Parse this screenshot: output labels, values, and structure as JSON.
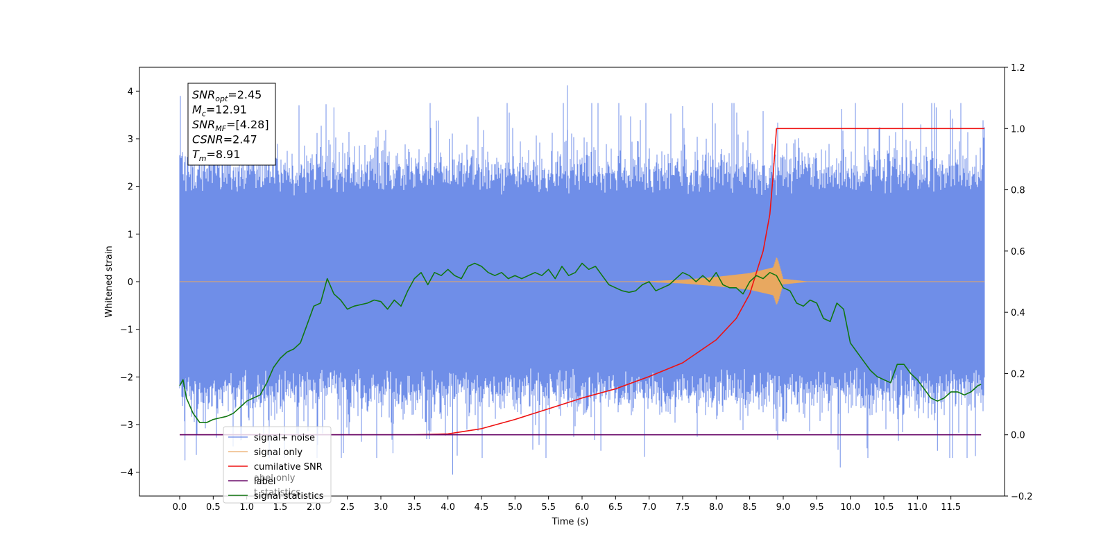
{
  "chart_data": {
    "type": "line",
    "title": "",
    "xlabel": "Time (s)",
    "ylabel": "Whitened strain",
    "y2label": "",
    "xlim": [
      -0.6,
      12.3
    ],
    "ylim": [
      -4.5,
      4.5
    ],
    "y2lim": [
      -0.2,
      1.2
    ],
    "xticks": [
      "0.0",
      "0.5",
      "1.0",
      "1.5",
      "2.0",
      "2.5",
      "3.0",
      "3.5",
      "4.0",
      "4.5",
      "5.0",
      "5.5",
      "6.0",
      "6.5",
      "7.0",
      "7.5",
      "8.0",
      "8.5",
      "9.0",
      "9.5",
      "10.0",
      "10.5",
      "11.0",
      "11.5"
    ],
    "yticks": [
      "−4",
      "−3",
      "−2",
      "−1",
      "0",
      "1",
      "2",
      "3",
      "4"
    ],
    "y2ticks": [
      "−0.2",
      "0.0",
      "0.2",
      "0.4",
      "0.6",
      "0.8",
      "1.0",
      "1.2"
    ],
    "grid": false,
    "legend_position": "lower-left",
    "colors": {
      "signal_noise": "#6f8ee8",
      "signal_only": "#e8a860",
      "cumulative_snr": "#ee1111",
      "label": "#6a0a6a",
      "signal_statistics": "#117711"
    },
    "series": [
      {
        "name": "signal+ noise",
        "axis": "left",
        "description_x_range": [
          0.0,
          12.0
        ],
        "typical_range": [
          -2.3,
          2.3
        ],
        "peak_max": 4.12,
        "peak_min": -4.05
      },
      {
        "name": "signal only",
        "axis": "left",
        "x": [
          0.0,
          7.0,
          7.5,
          8.0,
          8.5,
          8.85,
          8.9,
          8.93,
          9.0,
          9.4,
          12.0
        ],
        "envelope": [
          0.0,
          0.01,
          0.04,
          0.1,
          0.18,
          0.3,
          0.52,
          0.42,
          0.06,
          0.0,
          0.0
        ]
      },
      {
        "name": "cumilative SNR",
        "axis": "right",
        "x": [
          0.0,
          3.5,
          4.0,
          4.5,
          5.0,
          5.5,
          6.0,
          6.5,
          7.0,
          7.5,
          8.0,
          8.3,
          8.5,
          8.7,
          8.8,
          8.85,
          8.9,
          8.92,
          9.0,
          12.0
        ],
        "y": [
          0.0,
          0.0,
          0.003,
          0.02,
          0.05,
          0.085,
          0.12,
          0.15,
          0.19,
          0.235,
          0.31,
          0.38,
          0.46,
          0.6,
          0.72,
          0.85,
          1.0,
          1.0,
          1.0,
          1.0
        ]
      },
      {
        "name": "label",
        "axis": "right",
        "x": [
          0.0,
          11.95
        ],
        "y": [
          0.0,
          0.0
        ]
      },
      {
        "name": "signal statistics",
        "axis": "right",
        "x": [
          0.0,
          0.05,
          0.1,
          0.2,
          0.3,
          0.4,
          0.5,
          0.6,
          0.7,
          0.8,
          0.9,
          1.0,
          1.1,
          1.2,
          1.3,
          1.4,
          1.5,
          1.6,
          1.7,
          1.8,
          1.9,
          2.0,
          2.1,
          2.2,
          2.3,
          2.4,
          2.5,
          2.6,
          2.7,
          2.8,
          2.9,
          3.0,
          3.1,
          3.2,
          3.3,
          3.4,
          3.5,
          3.6,
          3.7,
          3.8,
          3.9,
          4.0,
          4.1,
          4.2,
          4.3,
          4.4,
          4.5,
          4.6,
          4.7,
          4.8,
          4.9,
          5.0,
          5.1,
          5.2,
          5.3,
          5.4,
          5.5,
          5.6,
          5.7,
          5.8,
          5.9,
          6.0,
          6.1,
          6.2,
          6.3,
          6.4,
          6.5,
          6.6,
          6.7,
          6.8,
          6.9,
          7.0,
          7.1,
          7.2,
          7.3,
          7.4,
          7.5,
          7.6,
          7.7,
          7.8,
          7.9,
          8.0,
          8.1,
          8.2,
          8.3,
          8.4,
          8.5,
          8.6,
          8.7,
          8.8,
          8.9,
          9.0,
          9.1,
          9.2,
          9.3,
          9.4,
          9.5,
          9.6,
          9.7,
          9.8,
          9.9,
          10.0,
          10.1,
          10.2,
          10.3,
          10.4,
          10.5,
          10.6,
          10.7,
          10.8,
          10.9,
          11.0,
          11.1,
          11.2,
          11.3,
          11.4,
          11.5,
          11.6,
          11.7,
          11.8,
          11.9,
          11.95
        ],
        "y": [
          0.16,
          0.18,
          0.12,
          0.07,
          0.04,
          0.04,
          0.05,
          0.055,
          0.06,
          0.07,
          0.09,
          0.11,
          0.12,
          0.13,
          0.17,
          0.22,
          0.25,
          0.27,
          0.28,
          0.3,
          0.36,
          0.42,
          0.43,
          0.51,
          0.46,
          0.44,
          0.41,
          0.42,
          0.425,
          0.43,
          0.44,
          0.435,
          0.41,
          0.44,
          0.42,
          0.47,
          0.51,
          0.53,
          0.49,
          0.53,
          0.52,
          0.54,
          0.52,
          0.51,
          0.55,
          0.56,
          0.55,
          0.53,
          0.52,
          0.53,
          0.51,
          0.52,
          0.51,
          0.52,
          0.53,
          0.52,
          0.54,
          0.51,
          0.55,
          0.52,
          0.53,
          0.56,
          0.54,
          0.55,
          0.52,
          0.49,
          0.48,
          0.47,
          0.465,
          0.47,
          0.49,
          0.5,
          0.47,
          0.48,
          0.49,
          0.51,
          0.53,
          0.52,
          0.5,
          0.52,
          0.5,
          0.53,
          0.49,
          0.48,
          0.48,
          0.46,
          0.5,
          0.52,
          0.51,
          0.53,
          0.52,
          0.48,
          0.47,
          0.43,
          0.42,
          0.44,
          0.43,
          0.38,
          0.37,
          0.43,
          0.41,
          0.3,
          0.27,
          0.24,
          0.21,
          0.19,
          0.18,
          0.17,
          0.23,
          0.23,
          0.2,
          0.18,
          0.15,
          0.12,
          0.11,
          0.12,
          0.14,
          0.14,
          0.13,
          0.14,
          0.16,
          0.165
        ]
      }
    ],
    "annotation_lines": [
      {
        "sym": "SNR",
        "sub": "opt",
        "val": "=2.45"
      },
      {
        "sym": "M",
        "sub": "c",
        "val": "=12.91"
      },
      {
        "sym": "SNR",
        "sub": "MF",
        "val": "=[4.28]"
      },
      {
        "sym": "CSNR",
        "sub": "",
        "val": "=2.47"
      },
      {
        "sym": "T",
        "sub": "m",
        "val": "=8.91"
      }
    ],
    "overlay_text": [
      "abel only",
      "t statistics"
    ]
  }
}
